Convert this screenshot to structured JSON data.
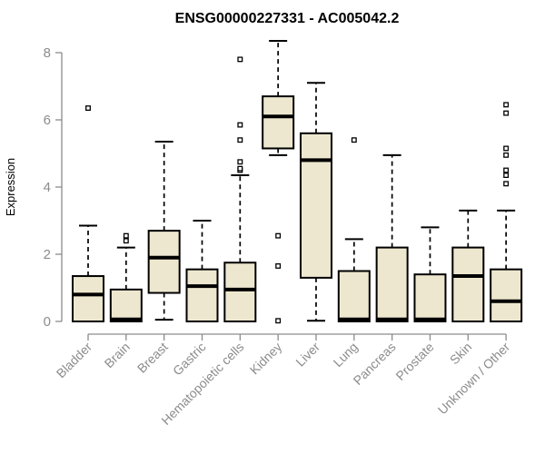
{
  "page": {
    "background": "#ffffff"
  },
  "chart_data": {
    "type": "boxplot",
    "title": "ENSG00000227331 - AC005042.2",
    "ylabel": "Expression",
    "xlabel": "",
    "ylim": [
      0,
      8
    ],
    "yticks": [
      0,
      2,
      4,
      6,
      8
    ],
    "grid": false,
    "legend": false,
    "categories": [
      "Bladder",
      "Brain",
      "Breast",
      "Gastric",
      "Hematopoietic cells",
      "Kidney",
      "Liver",
      "Lung",
      "Pancreas",
      "Prostate",
      "Skin",
      "Unknown / Other"
    ],
    "boxes": [
      {
        "category": "Bladder",
        "whisker_low": 0,
        "q1": 0,
        "median": 0.8,
        "q3": 1.35,
        "whisker_high": 2.85,
        "outliers": [
          6.35
        ]
      },
      {
        "category": "Brain",
        "whisker_low": 0,
        "q1": 0,
        "median": 0.06,
        "q3": 0.95,
        "whisker_high": 2.2,
        "outliers": [
          2.4,
          2.55
        ]
      },
      {
        "category": "Breast",
        "whisker_low": 0.05,
        "q1": 0.85,
        "median": 1.9,
        "q3": 2.7,
        "whisker_high": 5.35,
        "outliers": []
      },
      {
        "category": "Gastric",
        "whisker_low": 0,
        "q1": 0,
        "median": 1.05,
        "q3": 1.55,
        "whisker_high": 3.0,
        "outliers": []
      },
      {
        "category": "Hematopoietic cells",
        "whisker_low": 0,
        "q1": 0,
        "median": 0.95,
        "q3": 1.75,
        "whisker_high": 4.35,
        "outliers": [
          4.5,
          4.55,
          4.75,
          5.4,
          5.85,
          7.8
        ]
      },
      {
        "category": "Kidney",
        "whisker_low": 4.95,
        "q1": 5.15,
        "median": 6.1,
        "q3": 6.7,
        "whisker_high": 8.35,
        "outliers": [
          0.02,
          1.65,
          2.55
        ]
      },
      {
        "category": "Liver",
        "whisker_low": 0.02,
        "q1": 1.3,
        "median": 4.8,
        "q3": 5.6,
        "whisker_high": 7.1,
        "outliers": []
      },
      {
        "category": "Lung",
        "whisker_low": 0,
        "q1": 0,
        "median": 0.06,
        "q3": 1.5,
        "whisker_high": 2.45,
        "outliers": [
          5.4
        ]
      },
      {
        "category": "Pancreas",
        "whisker_low": 0,
        "q1": 0,
        "median": 0.06,
        "q3": 2.2,
        "whisker_high": 4.95,
        "outliers": []
      },
      {
        "category": "Prostate",
        "whisker_low": 0,
        "q1": 0,
        "median": 0.06,
        "q3": 1.4,
        "whisker_high": 2.8,
        "outliers": []
      },
      {
        "category": "Skin",
        "whisker_low": 0,
        "q1": 0,
        "median": 1.35,
        "q3": 2.2,
        "whisker_high": 3.3,
        "outliers": []
      },
      {
        "category": "Unknown / Other",
        "whisker_low": 0,
        "q1": 0,
        "median": 0.6,
        "q3": 1.55,
        "whisker_high": 3.3,
        "outliers": [
          4.1,
          4.35,
          4.5,
          4.95,
          5.15,
          6.2,
          6.45
        ]
      }
    ],
    "style": {
      "box_fill": "#EDE7CF",
      "box_stroke": "#000000",
      "median_color": "#000000",
      "whisker_color": "#000000",
      "outlier_stroke": "#000000",
      "outlier_fill": "#ffffff",
      "axis_color": "#8c8c8c",
      "label_color": "#8c8c8c",
      "title_color": "#000000"
    }
  }
}
